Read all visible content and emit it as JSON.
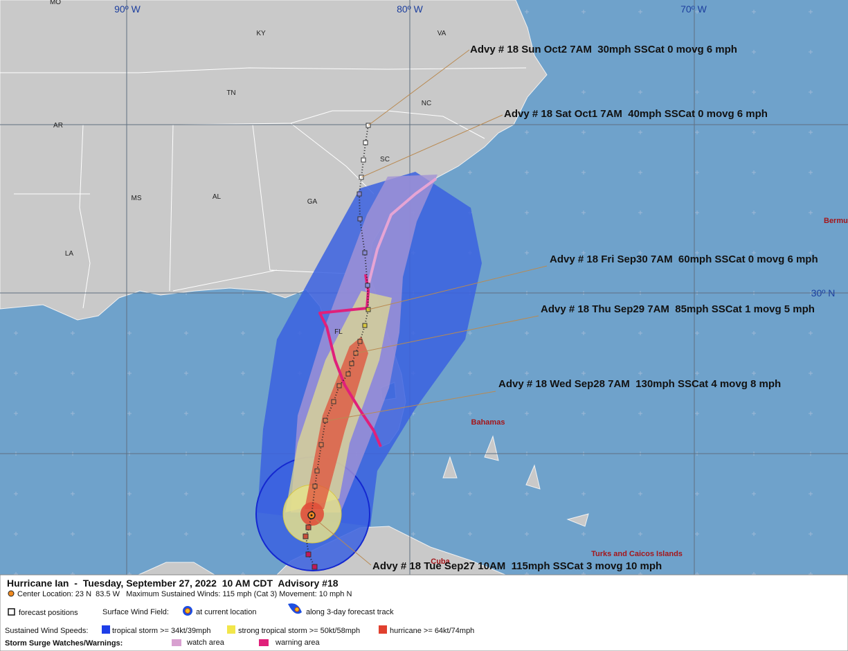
{
  "map": {
    "grid_labels": [
      "90º W",
      "80º W",
      "70º W",
      "30º N"
    ],
    "state_labels": [
      "MO",
      "KY",
      "VA",
      "TN",
      "NC",
      "AR",
      "SC",
      "MS",
      "AL",
      "GA",
      "LA",
      "FL"
    ],
    "place_labels": [
      "Bermu",
      "Bahamas",
      "Cuba",
      "Turks and Caicos Islands"
    ],
    "advisories": [
      "Advy # 18 Sun Oct2 7AM  30mph SSCat 0 movg 6 mph",
      "Advy # 18 Sat Oct1 7AM  40mph SSCat 0 movg 6 mph",
      "Advy # 18 Fri Sep30 7AM  60mph SSCat 0 movg 6 mph",
      "Advy # 18 Thu Sep29 7AM  85mph SSCat 1 movg 5 mph",
      "Advy # 18 Wed Sep28 7AM  130mph SSCat 4 movg 8 mph",
      "Advy # 18 Tue Sep27 10AM  115mph SSCat 3 movg 10 mph"
    ]
  },
  "legend": {
    "title": "Hurricane Ian  -  Tuesday, September 27, 2022  10 AM CDT  Advisory #18",
    "center": "Center Location: 23 N  83.5 W   Maximum Sustained Winds: 115 mph (Cat 3) Movement: 10 mph N",
    "forecast_positions": "forecast positions",
    "surface_wind_field": "Surface Wind Field:",
    "current_location": "at current location",
    "forecast_track": "along 3-day forecast track",
    "sustained_wind_speeds": "Sustained Wind Speeds:",
    "tropical_storm": "tropical storm >= 34kt/39mph",
    "strong_tropical_storm": "strong tropical storm >= 50kt/58mph",
    "hurricane": "hurricane >= 64kt/74mph",
    "storm_surge": "Storm Surge Watches/Warnings:",
    "watch_area": "watch area",
    "warning_area": "warning area"
  }
}
